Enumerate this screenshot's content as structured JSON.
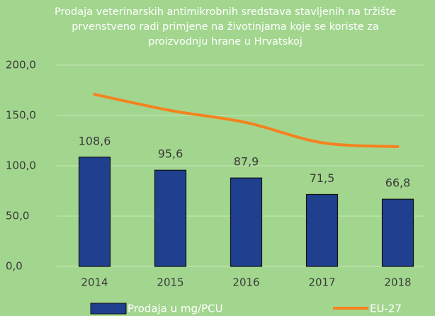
{
  "chart_data": {
    "type": "bar",
    "title": [
      "Prodaja veterinarskih antimikrobnih sredstava stavljenih na tržište",
      "prvenstveno radi primjene na životinjama koje se koriste za",
      "proizvodnju hrane u Hrvatskoj"
    ],
    "categories": [
      "2014",
      "2015",
      "2016",
      "2017",
      "2018"
    ],
    "series": [
      {
        "name": "Prodaja u mg/PCU",
        "type": "bar",
        "color": "#1f3f8f",
        "values": [
          108.6,
          95.6,
          87.9,
          71.5,
          66.8
        ],
        "value_labels": [
          "108,6",
          "95,6",
          "87,9",
          "71,5",
          "66,8"
        ]
      },
      {
        "name": "EU-27",
        "type": "line",
        "color": "#f5821f",
        "values": [
          171,
          155,
          143,
          123,
          119
        ]
      }
    ],
    "ylim": [
      0,
      200
    ],
    "yticks": [
      {
        "value": 0,
        "label": "0,0"
      },
      {
        "value": 50,
        "label": "50,0"
      },
      {
        "value": 100,
        "label": "100,0"
      },
      {
        "value": 150,
        "label": "150,0"
      },
      {
        "value": 200,
        "label": "200,0"
      }
    ],
    "grid": true,
    "legend": "bottom"
  }
}
